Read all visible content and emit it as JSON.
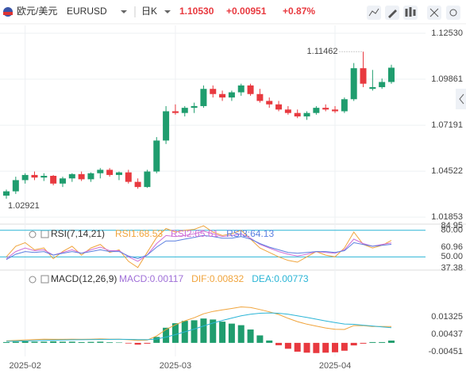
{
  "header": {
    "name": "欧元/美元",
    "symbol": "EURUSD",
    "period": "日K",
    "price": "1.10530",
    "change": "+0.00951",
    "change_pct": "+0.87%"
  },
  "chart_data": [
    {
      "type": "candlestick",
      "up_color": "#1f9d6e",
      "down_color": "#e8393f",
      "categories": [
        null,
        null,
        "2025-02",
        null,
        null,
        null,
        null,
        null,
        null,
        null,
        null,
        null,
        null,
        null,
        null,
        null,
        null,
        null,
        "2025-03",
        null,
        null,
        null,
        null,
        null,
        null,
        null,
        null,
        null,
        null,
        null,
        null,
        null,
        null,
        null,
        null,
        "2025-04",
        null,
        null,
        null,
        null,
        null,
        null
      ],
      "open": [
        1.031,
        1.0335,
        1.04,
        1.043,
        1.0415,
        1.0425,
        1.038,
        1.041,
        1.0435,
        1.0405,
        1.044,
        1.046,
        1.043,
        1.0445,
        1.039,
        1.036,
        1.045,
        1.063,
        1.08,
        1.079,
        1.082,
        1.083,
        1.093,
        1.09,
        1.088,
        1.091,
        1.095,
        1.09,
        1.086,
        1.084,
        1.081,
        1.079,
        1.077,
        1.079,
        1.082,
        1.081,
        1.08,
        1.087,
        1.105,
        1.093,
        1.094,
        1.097
      ],
      "high": [
        1.0345,
        1.042,
        1.044,
        1.045,
        1.044,
        1.043,
        1.042,
        1.044,
        1.045,
        1.0445,
        1.047,
        1.047,
        1.045,
        1.046,
        1.041,
        1.046,
        1.065,
        1.083,
        1.084,
        1.083,
        1.085,
        1.095,
        1.095,
        1.092,
        1.092,
        1.096,
        1.096,
        1.093,
        1.088,
        1.086,
        1.083,
        1.081,
        1.08,
        1.083,
        1.084,
        1.083,
        1.088,
        1.108,
        1.11462,
        1.104,
        1.099,
        1.107
      ],
      "low": [
        1.02921,
        1.032,
        1.038,
        1.04,
        1.0395,
        1.037,
        1.036,
        1.039,
        1.0395,
        1.039,
        1.041,
        1.042,
        1.04,
        1.038,
        1.035,
        1.0355,
        1.044,
        1.061,
        1.078,
        1.077,
        1.079,
        1.082,
        1.088,
        1.086,
        1.086,
        1.089,
        1.089,
        1.085,
        1.082,
        1.08,
        1.078,
        1.076,
        1.075,
        1.078,
        1.08,
        1.079,
        1.079,
        1.086,
        1.094,
        1.092,
        1.093,
        1.096
      ],
      "close": [
        1.0335,
        1.04,
        1.043,
        1.0415,
        1.0425,
        1.038,
        1.041,
        1.0435,
        1.0405,
        1.044,
        1.046,
        1.043,
        1.0445,
        1.039,
        1.036,
        1.045,
        1.063,
        1.08,
        1.079,
        1.082,
        1.083,
        1.093,
        1.09,
        1.088,
        1.091,
        1.095,
        1.09,
        1.086,
        1.084,
        1.081,
        1.079,
        1.077,
        1.079,
        1.082,
        1.081,
        1.08,
        1.087,
        1.105,
        1.096,
        1.094,
        1.097,
        1.1053
      ],
      "high_label": "1.11462",
      "low_label": "1.02921",
      "ylim": [
        1.0149,
        1.1299
      ],
      "yticks": [
        {
          "value": 1.1253,
          "label": "1.12530"
        },
        1.09861,
        1.07191,
        1.04522,
        1.01853
      ],
      "grid": true
    },
    {
      "type": "line",
      "title": "RSI(7,14,21)",
      "ylim": [
        36,
        86
      ],
      "levels": [
        80,
        50
      ],
      "level_color": "#2bb5d6",
      "yticks": [
        {
          "value": 80,
          "label": "80.00"
        },
        84.95,
        60.96,
        {
          "value": 50,
          "label": "50.00"
        },
        37.38
      ],
      "series": [
        {
          "name": "RSI1:68.53",
          "color": "#f0a43c",
          "values": [
            50,
            62,
            66,
            58,
            60,
            48,
            56,
            62,
            52,
            60,
            64,
            55,
            58,
            45,
            38,
            55,
            72,
            82,
            78,
            80,
            81,
            85,
            78,
            74,
            76,
            80,
            70,
            60,
            55,
            50,
            46,
            44,
            50,
            56,
            52,
            50,
            60,
            78,
            64,
            60,
            63,
            68.53
          ]
        },
        {
          "name": "RSI2:65.61",
          "color": "#cf6fd6",
          "values": [
            48,
            56,
            60,
            57,
            58,
            52,
            55,
            58,
            54,
            58,
            61,
            57,
            57,
            50,
            45,
            52,
            65,
            74,
            73,
            74,
            76,
            79,
            76,
            73,
            74,
            76,
            71,
            64,
            60,
            56,
            53,
            51,
            53,
            56,
            55,
            54,
            58,
            70,
            65,
            62,
            64,
            65.61
          ]
        },
        {
          "name": "RSI3:64.13",
          "color": "#5b7fe0",
          "values": [
            47,
            53,
            56,
            55,
            56,
            52,
            54,
            56,
            54,
            56,
            58,
            56,
            56,
            51,
            48,
            52,
            61,
            68,
            68,
            70,
            72,
            74,
            73,
            71,
            71,
            73,
            70,
            65,
            61,
            58,
            55,
            54,
            55,
            56,
            56,
            55,
            57,
            66,
            64,
            62,
            63,
            64.13
          ]
        }
      ]
    },
    {
      "type": "macd",
      "title": "MACD(12,26,9)",
      "ylim": [
        -0.0069,
        0.0286
      ],
      "yticks": [
        0.01325,
        0.00437,
        -0.00451
      ],
      "series": [
        {
          "name": "MACD:0.00117",
          "color": "#a070d8",
          "style": "bar",
          "up_color": "#1f9d6e",
          "down_color": "#e8393f",
          "values": [
            0.0004,
            0.0006,
            0.0008,
            0.0006,
            0.0006,
            0.0008,
            0.0006,
            0.0006,
            0.0004,
            0.0005,
            0.0006,
            0.0003,
            0.0002,
            -0.0003,
            -0.0009,
            -0.0004,
            0.003,
            0.0077,
            0.01,
            0.0112,
            0.0115,
            0.0124,
            0.0119,
            0.0108,
            0.0098,
            0.009,
            0.0068,
            0.0038,
            0.0012,
            -0.0012,
            -0.003,
            -0.0045,
            -0.005,
            -0.0052,
            -0.005,
            -0.0048,
            -0.004,
            -0.0013,
            -0.0004,
            0.0004,
            0.0004,
            0.00117
          ]
        },
        {
          "name": "DIF:0.00832",
          "color": "#f0a43c",
          "values": [
            0.001,
            0.0012,
            0.0015,
            0.0017,
            0.0019,
            0.0018,
            0.0018,
            0.0019,
            0.0018,
            0.0019,
            0.002,
            0.0019,
            0.0019,
            0.0016,
            0.0012,
            0.0014,
            0.0035,
            0.0068,
            0.0092,
            0.0112,
            0.0128,
            0.0148,
            0.016,
            0.0168,
            0.0175,
            0.0183,
            0.018,
            0.017,
            0.0158,
            0.0145,
            0.0125,
            0.0108,
            0.0095,
            0.0085,
            0.0076,
            0.0069,
            0.0068,
            0.0088,
            0.0088,
            0.0083,
            0.0083,
            0.00832
          ]
        },
        {
          "name": "DEA:0.00773",
          "color": "#2bb5d6",
          "values": [
            0.0008,
            0.00088,
            0.001,
            0.00114,
            0.00129,
            0.00139,
            0.00147,
            0.00156,
            0.00161,
            0.00167,
            0.00174,
            0.00177,
            0.0018,
            0.00176,
            0.00165,
            0.0016,
            0.00198,
            0.00294,
            0.00419,
            0.00559,
            0.00703,
            0.00858,
            0.01007,
            0.01141,
            0.01263,
            0.01376,
            0.01461,
            0.01509,
            0.01523,
            0.01508,
            0.01456,
            0.01381,
            0.01295,
            0.01206,
            0.01117,
            0.01032,
            0.00961,
            0.00945,
            0.009,
            0.0086,
            0.0081,
            0.00773
          ]
        }
      ]
    }
  ]
}
